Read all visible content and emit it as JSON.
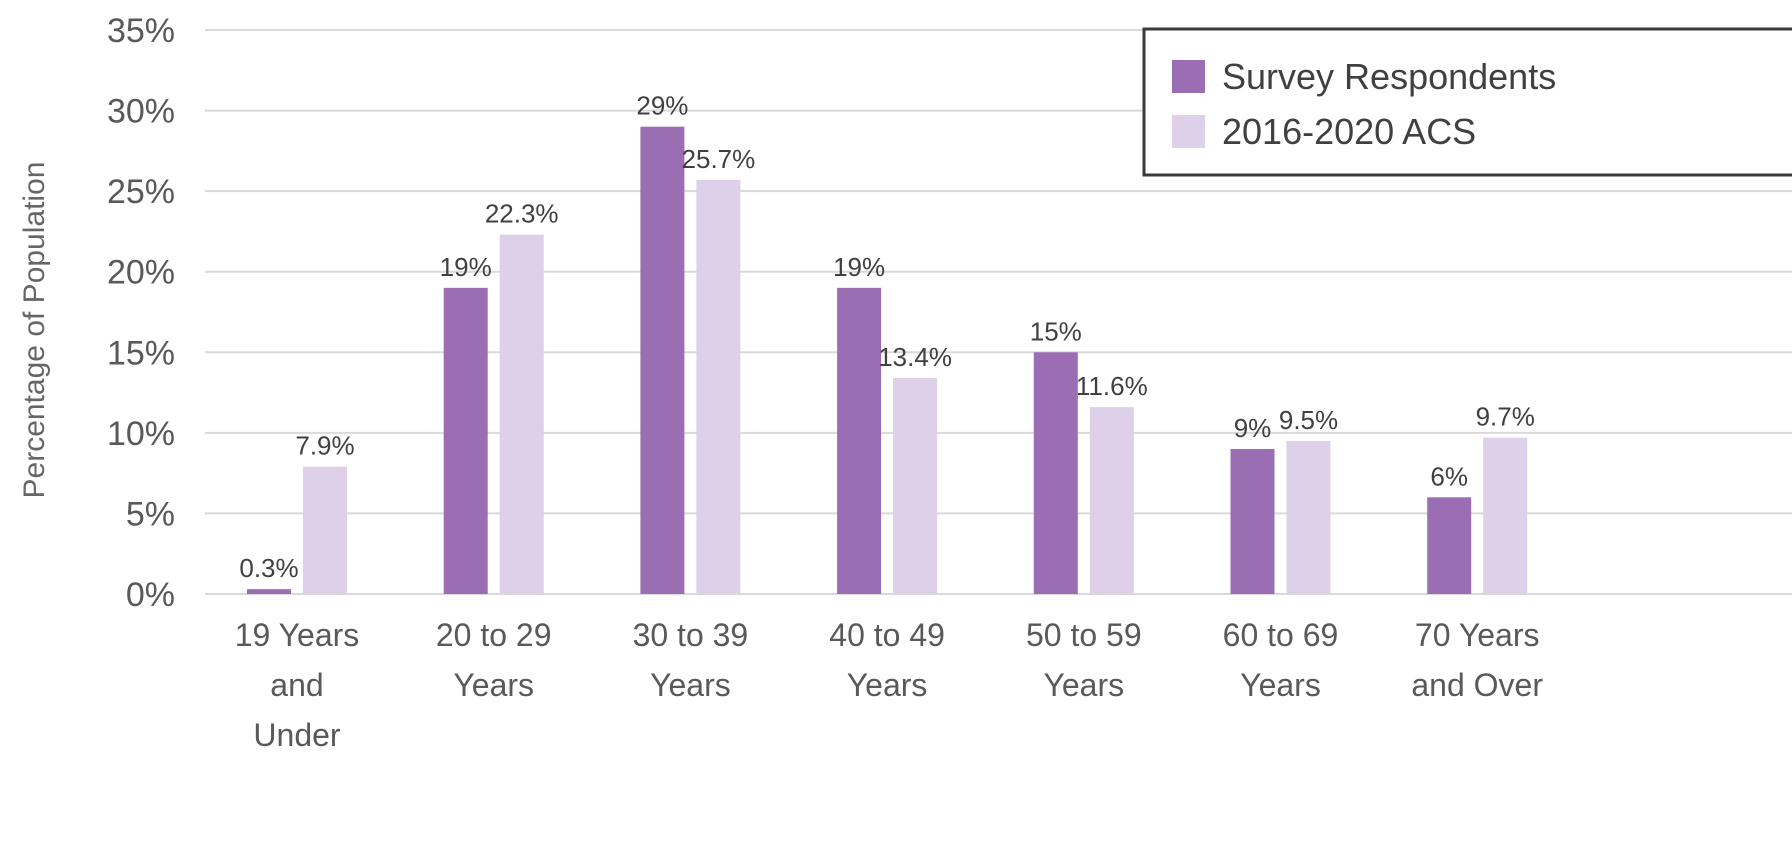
{
  "chart_data": {
    "type": "bar",
    "title": "",
    "xlabel": "",
    "ylabel": "Percentage of Population",
    "ylim": [
      0,
      35
    ],
    "yticks": [
      0,
      5,
      10,
      15,
      20,
      25,
      30,
      35
    ],
    "ytick_labels": [
      "0%",
      "5%",
      "10%",
      "15%",
      "20%",
      "25%",
      "30%",
      "35%"
    ],
    "grid": true,
    "legend_position": "top-right",
    "categories": [
      [
        "19 Years",
        "and",
        "Under"
      ],
      [
        "20 to 29",
        "Years"
      ],
      [
        "30 to 39",
        "Years"
      ],
      [
        "40 to 49",
        "Years"
      ],
      [
        "50 to 59",
        "Years"
      ],
      [
        "60 to 69",
        "Years"
      ],
      [
        "70 Years",
        "and Over"
      ]
    ],
    "series": [
      {
        "name": "Survey Respondents",
        "color": "#9b6db3",
        "values": [
          0.3,
          19,
          29,
          19,
          15,
          9,
          6
        ],
        "labels": [
          "0.3%",
          "19%",
          "29%",
          "19%",
          "15%",
          "9%",
          "6%"
        ]
      },
      {
        "name": "2016-2020 ACS",
        "color": "#ddd0e8",
        "values": [
          7.9,
          22.3,
          25.7,
          13.4,
          11.6,
          9.5,
          9.7
        ],
        "labels": [
          "7.9%",
          "22.3%",
          "25.7%",
          "13.4%",
          "11.6%",
          "9.5%",
          "9.7%"
        ]
      }
    ]
  }
}
